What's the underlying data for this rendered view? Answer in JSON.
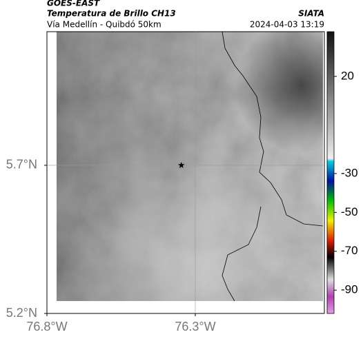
{
  "header": {
    "satellite": "GOES-EAST",
    "product": "Temperatura de Brillo CH13",
    "source": "SIATA",
    "route": "Vía Medellín - Quibdó 50km",
    "timestamp": "2024-04-03 13:19"
  },
  "map": {
    "lonlim": [
      -76.8,
      -75.865
    ],
    "latlim": [
      5.2,
      6.151
    ],
    "lonticks": [
      {
        "value": -76.8,
        "label": "76.8°W"
      },
      {
        "value": -76.3,
        "label": "76.3°W"
      }
    ],
    "latticks": [
      {
        "value": 5.7,
        "label": "5.7°N"
      },
      {
        "value": 5.2,
        "label": "5.2°N"
      }
    ],
    "marker": {
      "lon": -76.347,
      "lat": 5.7
    }
  },
  "colorbar": {
    "lim": [
      -102,
      43
    ],
    "ticks": [
      20,
      -30,
      -50,
      -70,
      -90
    ]
  }
}
